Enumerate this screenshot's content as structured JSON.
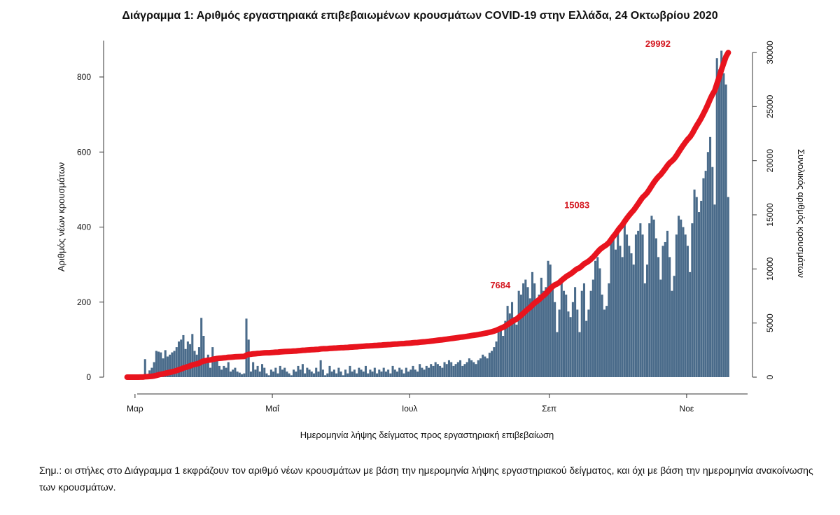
{
  "title": "Διάγραμμα 1: Αριθμός εργαστηριακά επιβεβαιωμένων κρουσμάτων COVID-19 στην Ελλάδα, 24 Οκτωβρίου 2020",
  "note": "Σημ.: οι στήλες στο Διάγραμμα 1 εκφράζουν τον αριθμό νέων κρουσμάτων με βάση την ημερομηνία λήψης εργαστηριακού δείγματος, και όχι με βάση την ημερομηνία ανακοίνωσης των κρουσμάτων.",
  "colors": {
    "bar": "#4a6b8a",
    "line": "#e8141e",
    "line_label": "#d41a22"
  },
  "chart_data": {
    "type": "bar",
    "xlabel": "Ημερομηνία λήψης δείγματος προς εργαστηριακή επιβεβαίωση",
    "ylabel_left": "Αριθμός νέων κρουσμάτων",
    "ylabel_right": "Συνολικός αριθμός κρουσμάτων",
    "x_ticks": [
      "Μαρ",
      "Μαΐ",
      "Ιουλ",
      "Σεπ",
      "Νοε"
    ],
    "y_left_ticks": [
      "0",
      "200",
      "400",
      "600",
      "800"
    ],
    "y_left_lim": [
      0,
      880
    ],
    "y_right_ticks": [
      "0",
      "5000",
      "10000",
      "15000",
      "20000",
      "25000",
      "30000"
    ],
    "y_right_lim": [
      0,
      30000
    ],
    "date_range": [
      "2020-02-26",
      "2020-10-24"
    ],
    "series": [
      {
        "kind": "bar",
        "values": [
          0,
          0,
          0,
          1,
          1,
          3,
          3,
          2,
          48,
          5,
          18,
          25,
          40,
          70,
          68,
          66,
          50,
          72,
          55,
          60,
          66,
          70,
          80,
          95,
          100,
          112,
          75,
          95,
          88,
          115,
          70,
          60,
          80,
          158,
          110,
          40,
          60,
          25,
          80,
          45,
          55,
          30,
          20,
          30,
          25,
          40,
          15,
          20,
          25,
          15,
          12,
          8,
          10,
          156,
          100,
          15,
          40,
          20,
          30,
          15,
          35,
          25,
          10,
          5,
          20,
          15,
          25,
          10,
          30,
          20,
          25,
          15,
          10,
          5,
          20,
          15,
          30,
          20,
          35,
          10,
          25,
          20,
          15,
          10,
          25,
          15,
          45,
          20,
          5,
          10,
          30,
          15,
          20,
          10,
          25,
          15,
          5,
          20,
          10,
          30,
          15,
          20,
          10,
          25,
          20,
          15,
          30,
          10,
          20,
          15,
          25,
          10,
          20,
          15,
          25,
          15,
          20,
          10,
          30,
          20,
          15,
          25,
          20,
          10,
          25,
          15,
          20,
          30,
          20,
          15,
          35,
          25,
          20,
          30,
          25,
          35,
          30,
          40,
          35,
          30,
          25,
          40,
          35,
          45,
          40,
          30,
          35,
          40,
          45,
          30,
          35,
          40,
          50,
          45,
          40,
          35,
          45,
          50,
          60,
          55,
          50,
          65,
          70,
          80,
          95,
          120,
          130,
          110,
          150,
          190,
          170,
          200,
          160,
          140,
          230,
          220,
          250,
          260,
          240,
          210,
          280,
          250,
          200,
          220,
          265,
          230,
          240,
          310,
          300,
          240,
          200,
          120,
          180,
          250,
          230,
          220,
          175,
          160,
          200,
          240,
          180,
          120,
          230,
          250,
          150,
          180,
          230,
          260,
          310,
          320,
          290,
          220,
          180,
          190,
          250,
          370,
          380,
          340,
          400,
          350,
          320,
          420,
          380,
          350,
          330,
          300,
          380,
          390,
          410,
          380,
          250,
          300,
          410,
          430,
          420,
          370,
          320,
          260,
          350,
          360,
          390,
          320,
          230,
          270,
          380,
          430,
          420,
          400,
          380,
          350,
          280,
          410,
          500,
          480,
          440,
          470,
          530,
          550,
          600,
          640,
          560,
          460,
          850,
          820,
          870,
          810,
          780,
          480
        ],
        "point_labels_visible": true
      },
      {
        "kind": "line",
        "name_label": "Συνολικός",
        "values_labeled": [
          {
            "x": "2020-08-14",
            "y": 7684,
            "label": "7684"
          },
          {
            "x": "2020-09-17",
            "y": 15083,
            "label": "15083"
          },
          {
            "x": "2020-10-23",
            "y": 29992,
            "label": "29992"
          }
        ]
      }
    ]
  }
}
